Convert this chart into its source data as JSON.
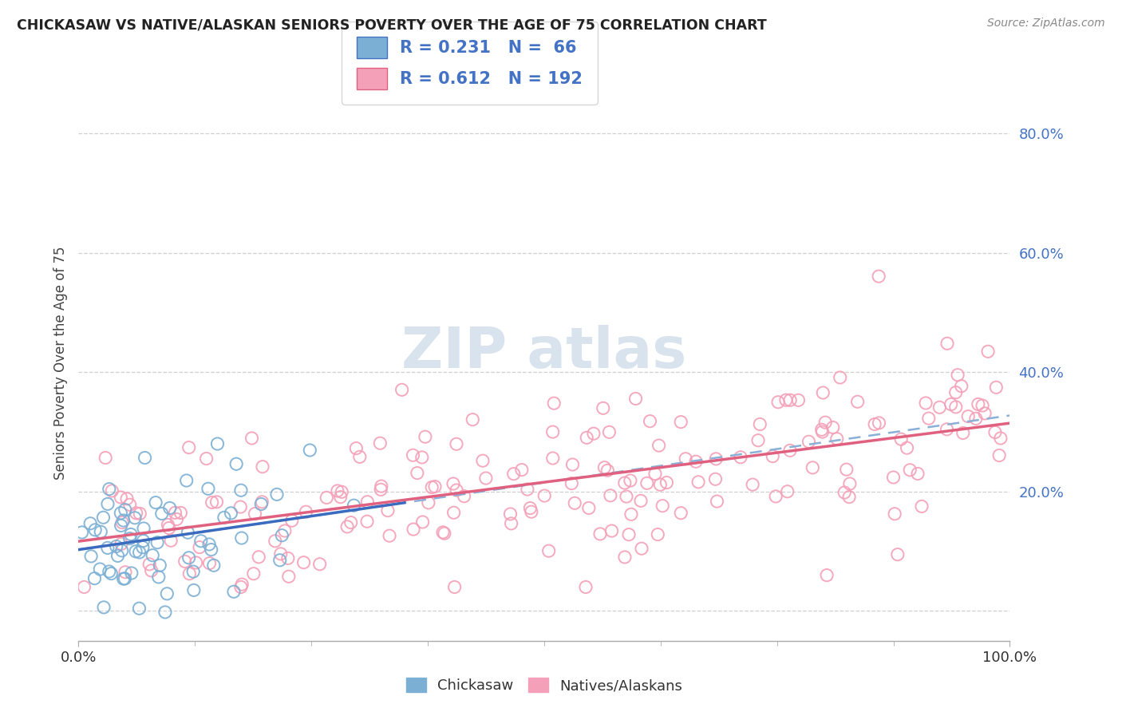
{
  "title": "CHICKASAW VS NATIVE/ALASKAN SENIORS POVERTY OVER THE AGE OF 75 CORRELATION CHART",
  "source": "Source: ZipAtlas.com",
  "ylabel": "Seniors Poverty Over the Age of 75",
  "xlim": [
    0.0,
    1.0
  ],
  "ylim": [
    -0.05,
    0.88
  ],
  "chickasaw_R": 0.231,
  "chickasaw_N": 66,
  "native_R": 0.612,
  "native_N": 192,
  "chickasaw_dot_color": "#7bafd4",
  "native_dot_color": "#f4a0b8",
  "chickasaw_line_color": "#3a6bbf",
  "native_line_color": "#e06080",
  "dashed_line_color": "#8ab0d8",
  "watermark_color": "#c8d8e8",
  "ytick_vals": [
    0.0,
    0.2,
    0.4,
    0.6,
    0.8
  ],
  "ytick_labels": [
    "",
    "20.0%",
    "40.0%",
    "60.0%",
    "80.0%"
  ],
  "xtick_labels": [
    "0.0%",
    "100.0%"
  ],
  "legend_labels": [
    "Chickasaw",
    "Natives/Alaskans"
  ],
  "background_color": "#ffffff",
  "grid_color": "#d0d0d0",
  "tick_label_color": "#4472c4",
  "xtick_label_color": "#333333"
}
